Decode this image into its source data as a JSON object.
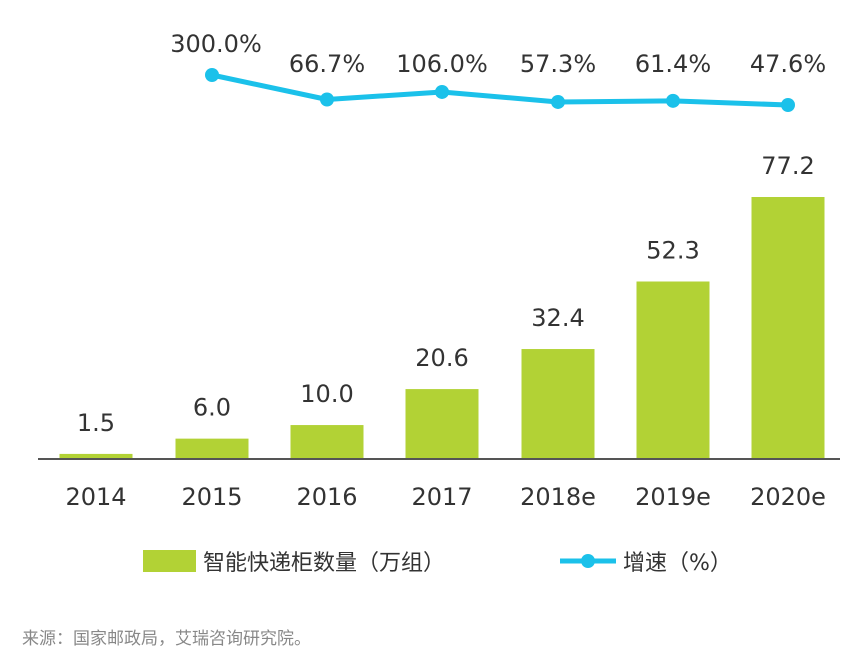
{
  "chart_data": {
    "type": "bar",
    "categories": [
      "2014",
      "2015",
      "2016",
      "2017",
      "2018e",
      "2019e",
      "2020e"
    ],
    "series": [
      {
        "name": "智能快递柜数量（万组）",
        "kind": "bar",
        "values": [
          1.5,
          6.0,
          10.0,
          20.6,
          32.4,
          52.3,
          77.2
        ],
        "labels": [
          "1.5",
          "6.0",
          "10.0",
          "20.6",
          "32.4",
          "52.3",
          "77.2"
        ],
        "color": "#b2d235"
      },
      {
        "name": "增速（%）",
        "kind": "line",
        "x": [
          "2015",
          "2016",
          "2017",
          "2018e",
          "2019e",
          "2020e"
        ],
        "values": [
          300.0,
          66.7,
          106.0,
          57.3,
          61.4,
          47.6
        ],
        "labels": [
          "300.0%",
          "66.7%",
          "106.0%",
          "57.3%",
          "61.4%",
          "47.6%"
        ],
        "color": "#1bc1ea"
      }
    ],
    "legend_position": "bottom",
    "grid": false
  },
  "source": "来源：国家邮政局，艾瑞咨询研究院。"
}
